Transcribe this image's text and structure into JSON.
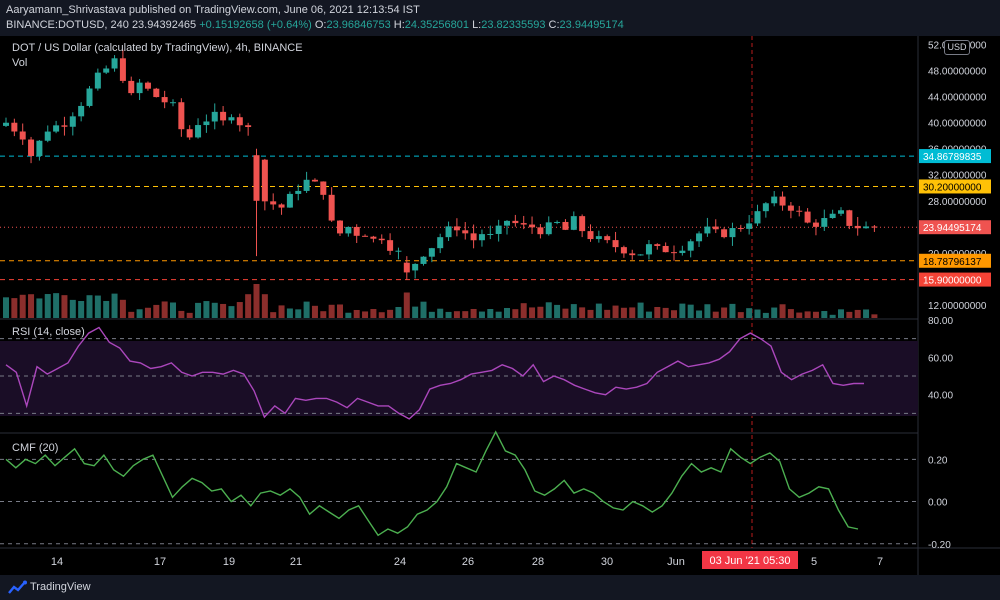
{
  "header": {
    "line1": "Aaryamann_Shrivastava published on TradingView.com, June 06, 2021 12:13:54 IST",
    "symbol": "BINANCE:DOTUSD, 240",
    "price": "23.94392465",
    "change": "+0.15192658 (+0.64%)",
    "o_label": "O:",
    "o_value": "23.96846753",
    "h_label": "H:",
    "h_value": "24.35256801",
    "l_label": "L:",
    "l_value": "23.82335593",
    "c_label": "C:",
    "c_value": "23.94495174"
  },
  "main_title": "DOT / US Dollar (calculated by TradingView), 4h, BINANCE",
  "vol_label": "Vol",
  "rsi_title": "RSI (14, close)",
  "cmf_title": "CMF (20)",
  "currency_badge": "USD",
  "footer_brand": "TradingView",
  "colors": {
    "up": "#26a69a",
    "down": "#ef5350",
    "bg": "#000000",
    "rsi_line": "#ab47bc",
    "cmf_line": "#4caf50",
    "axis_text": "#d1d4dc"
  },
  "chart_data": [
    {
      "type": "candlestick",
      "title": "DOT / US Dollar (calculated by TradingView), 4h, BINANCE",
      "x_tick_labels": [
        "14",
        "17",
        "19",
        "21",
        "24",
        "26",
        "28",
        "30",
        "Jun",
        "5",
        "7"
      ],
      "y_tick_labels": [
        "52.00000000",
        "48.00000000",
        "44.00000000",
        "40.00000000",
        "36.00000000",
        "32.00000000",
        "28.00000000",
        "24.00000000",
        "20.00000000",
        "16.00000000",
        "12.00000000"
      ],
      "ylim": [
        10,
        53
      ],
      "horizontal_levels": [
        {
          "value": 34.86789835,
          "label": "34.86789835",
          "color": "#00bcd4",
          "style": "dashed"
        },
        {
          "value": 30.2,
          "label": "30.20000000",
          "color": "#ffc107",
          "style": "dashed"
        },
        {
          "value": 23.94495174,
          "label": "23.94495174",
          "color": "#ef5350",
          "style": "dotted"
        },
        {
          "value": 18.78796137,
          "label": "18.78796137",
          "color": "#ff9800",
          "style": "dashed"
        },
        {
          "value": 15.9,
          "label": "15.90000000",
          "color": "#f44336",
          "style": "dashed"
        }
      ],
      "crosshair_label": "03 Jun '21   05:30",
      "close_path": [
        [
          0,
          40
        ],
        [
          2,
          38
        ],
        [
          3,
          35
        ],
        [
          5,
          39
        ],
        [
          7,
          40
        ],
        [
          9,
          43
        ],
        [
          11,
          47
        ],
        [
          13,
          49.5
        ],
        [
          14,
          47
        ],
        [
          15,
          44
        ],
        [
          16,
          46
        ],
        [
          18,
          44
        ],
        [
          20,
          42.5
        ],
        [
          21,
          39
        ],
        [
          22,
          37.8
        ],
        [
          23,
          40
        ],
        [
          24,
          40.5
        ],
        [
          25,
          41
        ],
        [
          26,
          40
        ],
        [
          27,
          41.5
        ],
        [
          28,
          40
        ],
        [
          29,
          39
        ],
        [
          30,
          35
        ],
        [
          30.5,
          26
        ],
        [
          31,
          28
        ],
        [
          33,
          27
        ],
        [
          35,
          30
        ],
        [
          36,
          31
        ],
        [
          37,
          30.5
        ],
        [
          38,
          29.5
        ],
        [
          39,
          24.5
        ],
        [
          40,
          23
        ],
        [
          41,
          24
        ],
        [
          42,
          23
        ],
        [
          43,
          23
        ],
        [
          44,
          22
        ],
        [
          45,
          22.5
        ],
        [
          46,
          21
        ],
        [
          47,
          20
        ],
        [
          48,
          17
        ],
        [
          49,
          18.5
        ],
        [
          50,
          20
        ],
        [
          51,
          21
        ],
        [
          52,
          22.5
        ],
        [
          53,
          23.5
        ],
        [
          54,
          24
        ],
        [
          55,
          23
        ],
        [
          56,
          22
        ],
        [
          57,
          23
        ],
        [
          58,
          22.5
        ],
        [
          59,
          23.5
        ],
        [
          60,
          25
        ],
        [
          61,
          24.5
        ],
        [
          62,
          24
        ],
        [
          63,
          24
        ],
        [
          64,
          23.5
        ],
        [
          65,
          24
        ],
        [
          66,
          24.5
        ],
        [
          67,
          23.5
        ],
        [
          68,
          25
        ],
        [
          69,
          23.5
        ],
        [
          70,
          22.5
        ],
        [
          71,
          22
        ],
        [
          72,
          21.5
        ],
        [
          73,
          21
        ],
        [
          74,
          20.5
        ],
        [
          75,
          20
        ],
        [
          76,
          20
        ],
        [
          77,
          21
        ],
        [
          78,
          20.5
        ],
        [
          79,
          20.5
        ],
        [
          80,
          20.5
        ],
        [
          81,
          21
        ],
        [
          82,
          22
        ],
        [
          83,
          23
        ],
        [
          84,
          23.5
        ],
        [
          85,
          23
        ],
        [
          86,
          23
        ],
        [
          87,
          23.5
        ],
        [
          88,
          24
        ],
        [
          89,
          25
        ],
        [
          90,
          26
        ],
        [
          91,
          27.5
        ],
        [
          92,
          28
        ],
        [
          93,
          27.5
        ],
        [
          94,
          27
        ],
        [
          95,
          26
        ],
        [
          96,
          24.5
        ],
        [
          97,
          24.5
        ],
        [
          98,
          25
        ],
        [
          99,
          25.5
        ],
        [
          100,
          26
        ],
        [
          101,
          24.5
        ],
        [
          102,
          24
        ],
        [
          103,
          23.9
        ],
        [
          104,
          23.94
        ]
      ]
    },
    {
      "type": "line",
      "title": "RSI (14, close)",
      "y_tick_labels": [
        "80.00",
        "60.00",
        "40.00"
      ],
      "ylim": [
        20,
        80
      ],
      "levels": [
        70,
        50,
        30
      ],
      "values": [
        56,
        52,
        34,
        55,
        51,
        54,
        57,
        66,
        73,
        76,
        68,
        65,
        58,
        57,
        54,
        55,
        57,
        52,
        50,
        52,
        52,
        51,
        53,
        51,
        42,
        28,
        34,
        30,
        38,
        37,
        38,
        38,
        36,
        33,
        38,
        36,
        34,
        34,
        30,
        27,
        32,
        43,
        45,
        46,
        48,
        51,
        52,
        53,
        56,
        54,
        50,
        56,
        47,
        50,
        48,
        45,
        43,
        41,
        40,
        44,
        43,
        44,
        46,
        52,
        55,
        58,
        55,
        56,
        57,
        59,
        63,
        70,
        73,
        70,
        66,
        52,
        48,
        51,
        53,
        56,
        46,
        45,
        46,
        46
      ]
    },
    {
      "type": "line",
      "title": "CMF (20)",
      "y_tick_labels": [
        "0.20",
        "0.00",
        "-0.20"
      ],
      "ylim": [
        -0.22,
        0.32
      ],
      "levels": [
        0.2,
        0.0,
        -0.2
      ],
      "values": [
        0.2,
        0.16,
        0.2,
        0.18,
        0.22,
        0.17,
        0.21,
        0.25,
        0.18,
        0.17,
        0.22,
        0.15,
        0.12,
        0.17,
        0.2,
        0.22,
        0.12,
        0.02,
        0.07,
        0.11,
        0.09,
        0.05,
        0.06,
        0.0,
        0.03,
        -0.02,
        0.04,
        0.05,
        0.03,
        0.06,
        0.02,
        -0.06,
        -0.02,
        -0.05,
        -0.08,
        -0.04,
        -0.02,
        -0.09,
        -0.16,
        -0.13,
        -0.15,
        -0.12,
        -0.06,
        -0.04,
        0.0,
        0.07,
        0.18,
        0.16,
        0.14,
        0.24,
        0.33,
        0.24,
        0.22,
        0.15,
        0.05,
        0.03,
        0.06,
        0.1,
        0.04,
        0.06,
        0.04,
        0.0,
        -0.03,
        -0.04,
        0.0,
        -0.02,
        -0.05,
        -0.02,
        0.04,
        0.12,
        0.18,
        0.14,
        0.16,
        0.14,
        0.25,
        0.21,
        0.18,
        0.21,
        0.23,
        0.19,
        0.06,
        0.02,
        0.04,
        0.07,
        0.06,
        -0.04,
        -0.12,
        -0.13
      ]
    }
  ]
}
